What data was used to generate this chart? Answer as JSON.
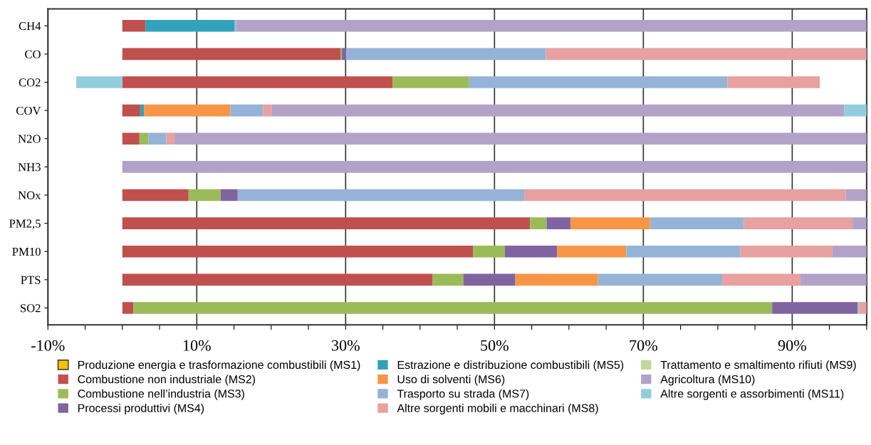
{
  "chart_data": {
    "type": "bar",
    "orientation": "horizontal",
    "stacked": true,
    "categories": [
      "CH4",
      "CO",
      "CO2",
      "COV",
      "N2O",
      "NH3",
      "NOx",
      "PM2,5",
      "PM10",
      "PTS",
      "SO2"
    ],
    "xlim": [
      -10,
      100
    ],
    "xticks": [
      {
        "value": -10,
        "label": "-10%"
      },
      {
        "value": -5,
        "label": null
      },
      {
        "value": 0,
        "label": null
      },
      {
        "value": 5,
        "label": null
      },
      {
        "value": 10,
        "label": "10%"
      },
      {
        "value": 15,
        "label": null
      },
      {
        "value": 20,
        "label": null
      },
      {
        "value": 25,
        "label": null
      },
      {
        "value": 30,
        "label": "30%"
      },
      {
        "value": 35,
        "label": null
      },
      {
        "value": 40,
        "label": null
      },
      {
        "value": 45,
        "label": null
      },
      {
        "value": 50,
        "label": "50%"
      },
      {
        "value": 55,
        "label": null
      },
      {
        "value": 60,
        "label": null
      },
      {
        "value": 65,
        "label": null
      },
      {
        "value": 70,
        "label": "70%"
      },
      {
        "value": 75,
        "label": null
      },
      {
        "value": 80,
        "label": null
      },
      {
        "value": 85,
        "label": null
      },
      {
        "value": 90,
        "label": "90%"
      },
      {
        "value": 95,
        "label": null
      },
      {
        "value": 100,
        "label": null
      }
    ],
    "grid": "x",
    "legend": "bottom",
    "series": [
      {
        "name": "Produzione energia e trasformazione combustibili (MS1)",
        "color": "#ffc000",
        "values": [
          0,
          0,
          0,
          0,
          0,
          0,
          0,
          0,
          0,
          0,
          0
        ]
      },
      {
        "name": "Combustione non industriale (MS2)",
        "color": "#c0504d",
        "values": [
          3.1,
          29.3,
          36.3,
          2.4,
          2.3,
          0,
          8.9,
          54.8,
          47.1,
          41.7,
          1.5
        ]
      },
      {
        "name": "Combustione nell’industria (MS3)",
        "color": "#9bbb59",
        "values": [
          0,
          0.2,
          10.3,
          0,
          1.2,
          0,
          4.3,
          2.2,
          4.3,
          4.1,
          85.8
        ]
      },
      {
        "name": "Processi produttivi (MS4)",
        "color": "#8064a2",
        "values": [
          0,
          0.6,
          0,
          0,
          0,
          0,
          2.3,
          3.2,
          7.0,
          7.0,
          11.5
        ]
      },
      {
        "name": "Estrazione e distribuzione combustibili (MS5)",
        "color": "#31a2ba",
        "values": [
          12.0,
          0,
          0,
          0.5,
          0,
          0,
          0,
          0,
          0,
          0,
          0
        ]
      },
      {
        "name": "Uso di solventi (MS6)",
        "color": "#f79646",
        "values": [
          0,
          0,
          0,
          11.6,
          0,
          0,
          0,
          10.7,
          9.3,
          11.1,
          0
        ]
      },
      {
        "name": "Trasporto su strada (MS7)",
        "color": "#95b3d7",
        "values": [
          0.2,
          26.8,
          34.7,
          4.4,
          2.4,
          0,
          38.5,
          12.6,
          15.3,
          16.7,
          0.2
        ]
      },
      {
        "name": "Altre sorgenti mobili e macchinari (MS8)",
        "color": "#e6a1a0",
        "values": [
          0,
          43.1,
          12.4,
          1.2,
          1.1,
          0,
          43.2,
          14.6,
          12.4,
          10.5,
          1.0
        ]
      },
      {
        "name": "Trattamento e smaltimento rifiuti (MS9)",
        "color": "#c3d69b",
        "values": [
          0,
          0,
          0,
          0,
          0,
          0,
          0,
          0,
          0,
          0,
          0
        ]
      },
      {
        "name": "Agricoltura (MS10)",
        "color": "#b3a2c7",
        "values": [
          84.7,
          0,
          0,
          76.9,
          93.0,
          100,
          2.8,
          1.9,
          4.6,
          8.9,
          0
        ]
      },
      {
        "name": "Altre sorgenti e assorbimenti (MS11)",
        "color": "#93cddd",
        "values": [
          0,
          0,
          -6.2,
          3.0,
          0,
          0,
          0,
          0,
          0,
          0,
          0
        ]
      }
    ]
  }
}
